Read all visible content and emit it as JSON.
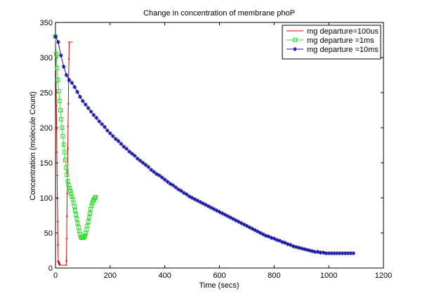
{
  "chart_data": {
    "type": "line",
    "title": "Change in concentration of membrane phoP",
    "xlabel": "Time (secs)",
    "ylabel": "Concentration (molecule Count)",
    "xlim": [
      0,
      1200
    ],
    "ylim": [
      0,
      350
    ],
    "xticks": [
      0,
      200,
      400,
      600,
      800,
      1000,
      1200
    ],
    "yticks": [
      0,
      50,
      100,
      150,
      200,
      250,
      300,
      350
    ],
    "grid": false,
    "legend_position": "top-right",
    "series": [
      {
        "name": "mg departure=100us",
        "color": "#d40000",
        "marker": "dot",
        "x": [
          0,
          1,
          2,
          3,
          4,
          5,
          6,
          7,
          8,
          9,
          10,
          11,
          12,
          13,
          14,
          15,
          16,
          17,
          18,
          19,
          20,
          21,
          22,
          23,
          24,
          25,
          26,
          27,
          28,
          29,
          30,
          31,
          32,
          33,
          34,
          35,
          36,
          37,
          38,
          39,
          40,
          41,
          42,
          43,
          44,
          45,
          46,
          47,
          48,
          49,
          50,
          51,
          52,
          53,
          54,
          55,
          56,
          57,
          58,
          59
        ],
        "y": [
          330,
          297.0,
          264.0,
          231.0,
          198.0,
          165.0,
          132.0,
          99.0,
          66.0,
          33.0,
          10.0,
          9.0,
          8.0,
          7.0,
          6.0,
          5.0,
          4.0,
          4.0,
          4.0,
          4.0,
          4.0,
          4.0,
          4.0,
          4.0,
          4.0,
          4.0,
          4.0,
          4.0,
          4.0,
          4.0,
          4.0,
          4.0,
          4.0,
          4.0,
          4.0,
          4.0,
          4.0,
          4.0,
          4.0,
          4.0,
          10.0,
          42.0,
          74.0,
          106.0,
          138.0,
          170.0,
          202.0,
          234.0,
          266.0,
          298.0,
          322.0,
          322.0,
          322.0,
          322.0,
          322.0,
          322.0,
          322.0,
          322.0,
          322.0,
          322.0
        ]
      },
      {
        "name": "mg departure =1ms",
        "color": "#2ee02e",
        "marker": "square",
        "x": [
          0,
          3,
          6,
          9,
          12,
          15,
          18,
          21,
          24,
          27,
          30,
          33,
          36,
          39,
          42,
          45,
          48,
          51,
          54,
          57,
          60,
          63,
          66,
          69,
          72,
          75,
          78,
          81,
          84,
          87,
          90,
          93,
          96,
          99,
          102,
          105,
          108,
          111,
          114,
          117,
          120,
          123,
          126,
          129,
          132,
          135,
          138,
          141,
          144,
          147
        ],
        "y": [
          330,
          305.0,
          285.0,
          268.0,
          252.0,
          238.0,
          225.0,
          212.0,
          200.0,
          188.0,
          176.0,
          165.0,
          154.0,
          143.0,
          133.0,
          124.0,
          118.0,
          114.0,
          110.0,
          106.0,
          102.0,
          98.0,
          93.0,
          88.0,
          82.0,
          76.0,
          70.0,
          64.0,
          58.0,
          53.0,
          48.0,
          44.0,
          43.0,
          43.0,
          43.0,
          44.0,
          46.0,
          50.0,
          55.0,
          60.0,
          66.0,
          72.0,
          78.0,
          84.0,
          89.0,
          93.0,
          96.0,
          98.0,
          100.0,
          101.0
        ]
      },
      {
        "name": "mg departure =10ms",
        "color": "#1010a0",
        "marker": "star",
        "x": [
          0,
          10,
          20,
          30,
          40,
          50,
          60,
          70,
          80,
          90,
          100,
          110,
          120,
          130,
          140,
          150,
          160,
          170,
          180,
          190,
          200,
          210,
          220,
          230,
          240,
          250,
          260,
          270,
          280,
          290,
          300,
          310,
          320,
          330,
          340,
          350,
          360,
          370,
          380,
          390,
          400,
          410,
          420,
          430,
          440,
          450,
          460,
          470,
          480,
          490,
          500,
          510,
          520,
          530,
          540,
          550,
          560,
          570,
          580,
          590,
          600,
          610,
          620,
          630,
          640,
          650,
          660,
          670,
          680,
          690,
          700,
          710,
          720,
          730,
          740,
          750,
          760,
          770,
          780,
          790,
          800,
          810,
          820,
          830,
          840,
          850,
          860,
          870,
          880,
          890,
          900,
          910,
          920,
          930,
          940,
          950,
          960,
          970,
          980,
          990,
          1000,
          1010,
          1020,
          1030,
          1040,
          1050,
          1060,
          1070,
          1080,
          1090
        ],
        "y": [
          330,
          322.0,
          303.0,
          287.0,
          275.0,
          268.0,
          264.0,
          258.0,
          251.0,
          244.0,
          238.0,
          233.0,
          228.0,
          223.0,
          218.0,
          214.0,
          209.0,
          205.0,
          201.0,
          196.0,
          192.0,
          188.0,
          184.0,
          181.0,
          177.0,
          173.0,
          170.0,
          166.0,
          163.0,
          160.0,
          156.0,
          153.0,
          150.0,
          147.0,
          144.0,
          140.0,
          137.0,
          134.0,
          132.0,
          129.0,
          126.0,
          123.0,
          120.0,
          118.0,
          115.0,
          112.0,
          110.0,
          107.0,
          105.0,
          102.0,
          100.0,
          98.0,
          96.0,
          94.0,
          92.0,
          90.0,
          88.0,
          86.0,
          84.0,
          82.0,
          80.0,
          78.0,
          76.0,
          74.0,
          72.0,
          70.0,
          68.0,
          66.0,
          64.0,
          62.0,
          60.0,
          58.0,
          56.0,
          54.0,
          52.0,
          50.0,
          48.0,
          46.0,
          45.0,
          43.0,
          42.0,
          40.0,
          39.0,
          37.0,
          36.0,
          34.0,
          33.0,
          31.0,
          30.0,
          29.0,
          28.0,
          27.0,
          26.0,
          25.0,
          24.0,
          23.0,
          23.0,
          22.0,
          22.0,
          21.0,
          21.0,
          21.0,
          21.0,
          21.0,
          21.0,
          21.0,
          21.0,
          21.0,
          21.0,
          21.0
        ]
      }
    ]
  }
}
